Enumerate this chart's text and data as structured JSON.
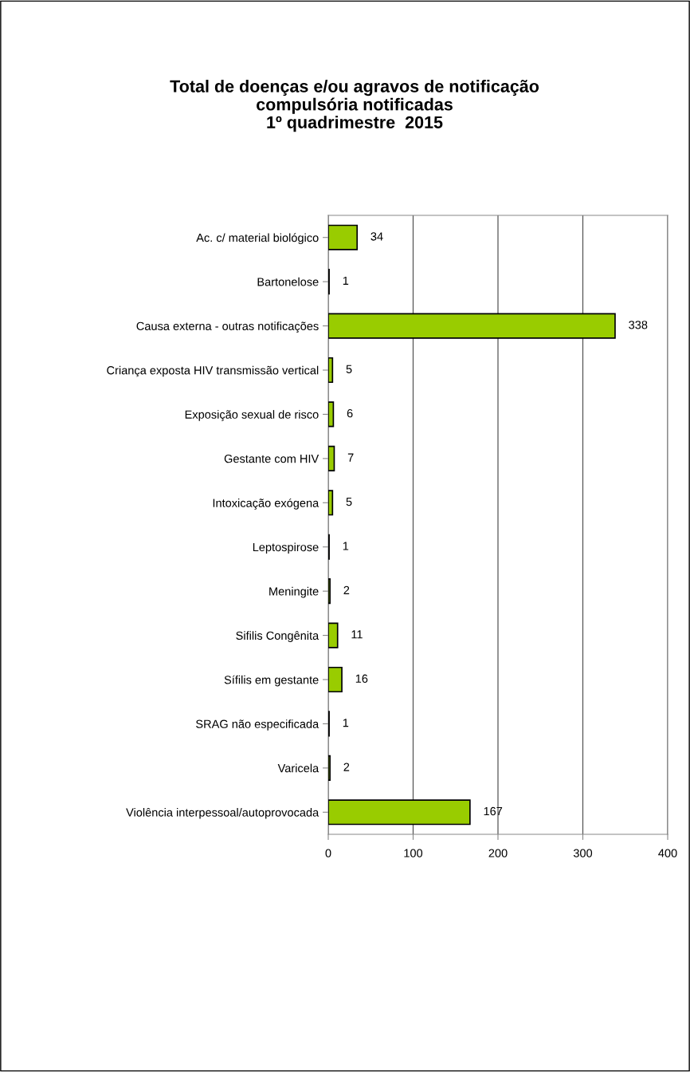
{
  "chart_data": {
    "type": "bar",
    "orientation": "horizontal",
    "title": "Total de doenças e/ou agravos de notificação\ncompulsória notificadas\n1º quadrimestre  2015",
    "categories": [
      "Ac. c/ material biológico",
      "Bartonelose",
      "Causa externa - outras notificações",
      "Criança exposta HIV transmissão vertical",
      "Exposição sexual de risco",
      "Gestante com HIV",
      "Intoxicação exógena",
      "Leptospirose",
      "Meningite",
      "Sifilis Congênita",
      "Sífilis em gestante",
      "SRAG não especificada",
      "Varicela",
      "Violência interpessoal/autoprovocada"
    ],
    "values": [
      34,
      1,
      338,
      5,
      6,
      7,
      5,
      1,
      2,
      11,
      16,
      1,
      2,
      167
    ],
    "color": "#99cc00",
    "xlim": [
      0,
      400
    ],
    "xticks": [
      0,
      100,
      200,
      300,
      400
    ],
    "grid": "x",
    "data_labels": true
  }
}
